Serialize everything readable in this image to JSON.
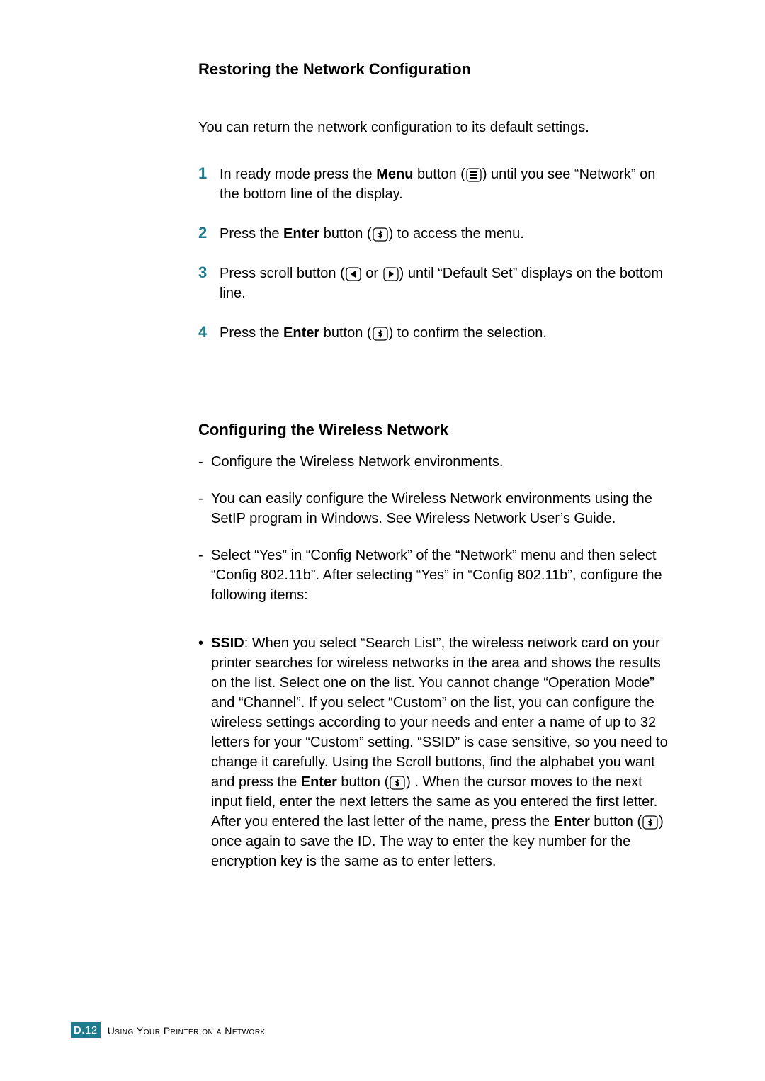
{
  "colors": {
    "accent": "#1f7a8c",
    "text": "#000000",
    "bg": "#ffffff"
  },
  "heading1": "Restoring the Network Configuration",
  "intro1": "You can return the network configuration to its default settings.",
  "steps": [
    {
      "num": "1",
      "pre": "In ready mode press the ",
      "bold": "Menu",
      "mid": " button (",
      "icon": "menu",
      "post": ") until you see “Network” on the bottom line of the display."
    },
    {
      "num": "2",
      "pre": "Press the ",
      "bold": "Enter",
      "mid": " button (",
      "icon": "enter",
      "post": ") to access the menu."
    },
    {
      "num": "3",
      "pre": "Press scroll button (",
      "bold": "",
      "mid": "",
      "icon": "scroll",
      "post": ") until “Default Set” displays on the bottom line."
    },
    {
      "num": "4",
      "pre": "Press the ",
      "bold": "Enter",
      "mid": " button (",
      "icon": "enter",
      "post": ") to confirm the selection."
    }
  ],
  "heading2": "Configuring the Wireless Network",
  "dash_items": [
    "Configure the Wireless Network environments.",
    "You can easily configure the Wireless Network environments using the SetIP program in Windows. See Wireless Network User’s Guide.",
    "Select “Yes” in “Config Network” of the “Network” menu and then select “Config 802.11b”. After selecting “Yes” in “Config 802.11b”, configure the following items:"
  ],
  "bullet": {
    "bold": "SSID",
    "p1": ": When you select “Search List”, the wireless network card on your printer searches for wireless networks in the area and shows the results on the list. Select one on the list. You cannot change “Operation Mode” and “Channel”. If you select “Custom” on the list, you can configure the wireless settings according to your needs and enter a name of up to 32 letters for your “Custom” setting. “SSID” is case sensitive, so you need to change it carefully. Using the Scroll buttons, find the alphabet you want and press the ",
    "bold2": "Enter",
    "p2": " button (",
    "icon": "enter",
    "p3": ") . When the cursor moves to the next input field, enter the next letters the same as you entered the first letter. After you entered the last letter of the name, press the ",
    "bold3": "Enter",
    "p4": " button (",
    "icon2": "enter",
    "p5": ") once again to save the ID. The way to enter the key number for the encryption key is the same as to enter letters."
  },
  "footer": {
    "badge_letter": "D.",
    "badge_num": "12",
    "title": "Using Your Printer on a Network"
  }
}
